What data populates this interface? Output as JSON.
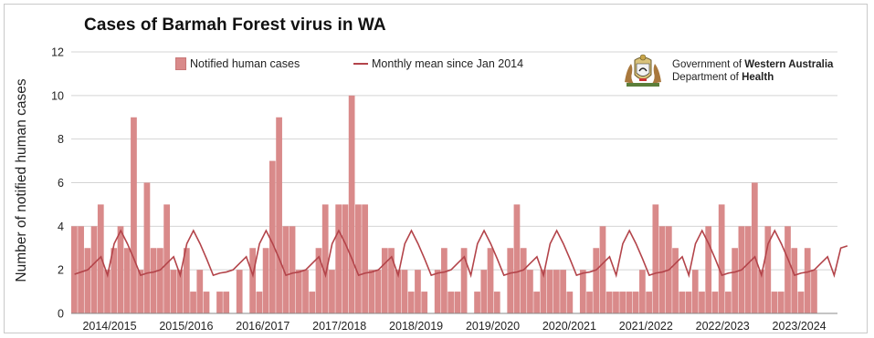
{
  "chart_data": {
    "type": "bar",
    "title": "Cases of Barmah Forest virus in WA",
    "ylabel": "Number of notified human cases",
    "xlabel": "",
    "ylim": [
      0,
      12
    ],
    "yticks": [
      "0",
      "2",
      "4",
      "6",
      "8",
      "10",
      "12"
    ],
    "x_tick_labels": [
      "2014/2015",
      "2015/2016",
      "2016/2017",
      "2017/2018",
      "2018/2019",
      "2019/2020",
      "2020/2021",
      "2021/2022",
      "2022/2023",
      "2023/2024"
    ],
    "grid": "horizontal",
    "legend_position": "top",
    "series": [
      {
        "name": "Notified human cases",
        "type": "bar",
        "color": "#d98a8a",
        "values": [
          4,
          4,
          3,
          4,
          5,
          2,
          3,
          4,
          3,
          9,
          2,
          6,
          3,
          3,
          5,
          2,
          2,
          3,
          1,
          2,
          1,
          0,
          1,
          1,
          0,
          2,
          0,
          3,
          1,
          3,
          7,
          9,
          4,
          4,
          2,
          2,
          1,
          3,
          5,
          2,
          5,
          5,
          10,
          5,
          5,
          2,
          2,
          3,
          3,
          2,
          2,
          1,
          2,
          1,
          0,
          2,
          3,
          1,
          1,
          3,
          0,
          1,
          2,
          3,
          1,
          0,
          3,
          5,
          3,
          2,
          1,
          2,
          2,
          2,
          2,
          1,
          0,
          2,
          1,
          3,
          4,
          1,
          1,
          1,
          1,
          1,
          2,
          1,
          5,
          4,
          4,
          3,
          1,
          1,
          2,
          1,
          4,
          1,
          5,
          1,
          3,
          4,
          4,
          6,
          2,
          4,
          1,
          1,
          4,
          3,
          1,
          3,
          2,
          0,
          0,
          0
        ]
      },
      {
        "name": "Monthly mean since Jan 2014",
        "type": "line",
        "color": "#b3444a",
        "values": [
          1.8,
          1.9,
          2.0,
          2.3,
          2.6,
          1.75,
          3.2,
          3.8,
          3.2,
          2.5,
          1.75,
          1.85,
          1.9,
          2.0,
          2.3,
          2.6,
          1.75,
          3.2,
          3.8,
          3.2,
          2.5,
          1.75,
          1.85,
          1.9,
          2.0,
          2.3,
          2.6,
          1.75,
          3.2,
          3.8,
          3.2,
          2.5,
          1.75,
          1.85,
          1.9,
          2.0,
          2.3,
          2.6,
          1.75,
          3.2,
          3.8,
          3.2,
          2.5,
          1.75,
          1.85,
          1.9,
          2.0,
          2.3,
          2.6,
          1.75,
          3.2,
          3.8,
          3.2,
          2.5,
          1.75,
          1.85,
          1.9,
          2.0,
          2.3,
          2.6,
          1.75,
          3.2,
          3.8,
          3.2,
          2.5,
          1.75,
          1.85,
          1.9,
          2.0,
          2.3,
          2.6,
          1.75,
          3.2,
          3.8,
          3.2,
          2.5,
          1.75,
          1.85,
          1.9,
          2.0,
          2.3,
          2.6,
          1.75,
          3.2,
          3.8,
          3.2,
          2.5,
          1.75,
          1.85,
          1.9,
          2.0,
          2.3,
          2.6,
          1.75,
          3.2,
          3.8,
          3.2,
          2.5,
          1.75,
          1.85,
          1.9,
          2.0,
          2.3,
          2.6,
          1.75,
          3.2,
          3.8,
          3.2,
          2.5,
          1.75,
          1.85,
          1.9,
          2.0,
          2.3,
          2.6,
          1.75,
          3.0,
          3.1
        ]
      }
    ]
  },
  "branding": {
    "gov_prefix": "Government of ",
    "gov_state": "Western Australia",
    "dept_prefix": "Department of ",
    "dept_name": "Health"
  },
  "colors": {
    "bar": "#d98a8a",
    "bar_edge": "#c97777",
    "line": "#b3444a",
    "grid": "#d4d4d4",
    "axis": "#888888"
  }
}
